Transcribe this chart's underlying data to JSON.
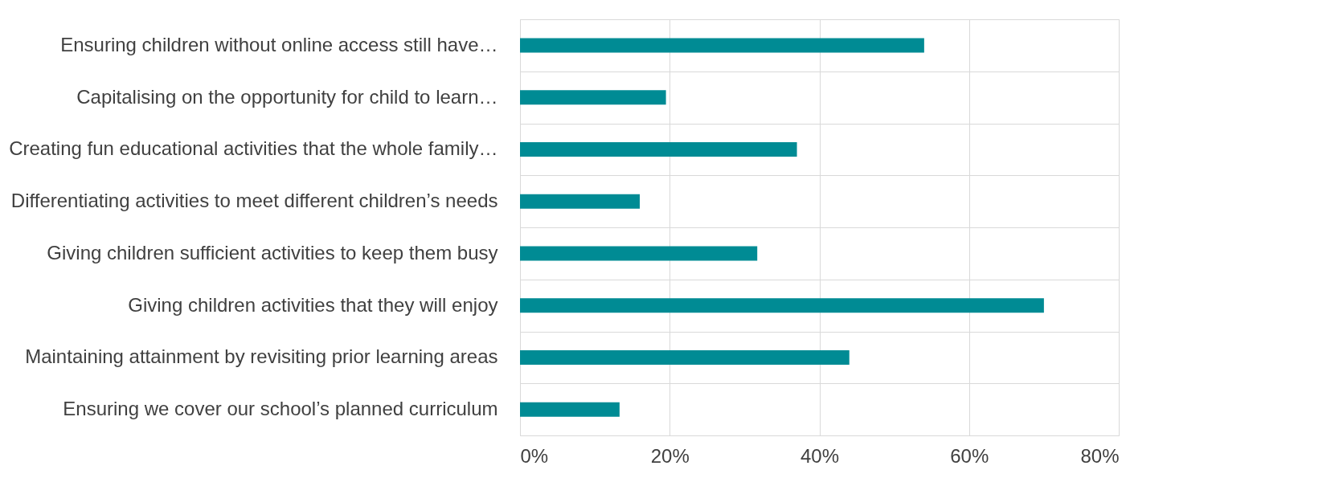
{
  "chart_data": {
    "type": "bar",
    "orientation": "horizontal",
    "categories": [
      "Ensuring children without online access still have…",
      "Capitalising on the opportunity for child to learn…",
      "Creating fun educational activities that the whole family…",
      "Differentiating activities to meet different children’s needs",
      "Giving children sufficient activities to keep them busy",
      "Giving children activities that they will enjoy",
      "Maintaining attainment by revisiting prior learning areas",
      "Ensuring we cover our school’s planned curriculum"
    ],
    "values": [
      0.54,
      0.195,
      0.37,
      0.16,
      0.317,
      0.7,
      0.44,
      0.133
    ],
    "color": "#008b94",
    "xlim": [
      0,
      0.8
    ],
    "xticks": [
      {
        "value": 0,
        "label": "0%"
      },
      {
        "value": 0.2,
        "label": "20%"
      },
      {
        "value": 0.4,
        "label": "40%"
      },
      {
        "value": 0.6,
        "label": "60%"
      },
      {
        "value": 0.8,
        "label": "80%"
      }
    ],
    "grid": true
  }
}
